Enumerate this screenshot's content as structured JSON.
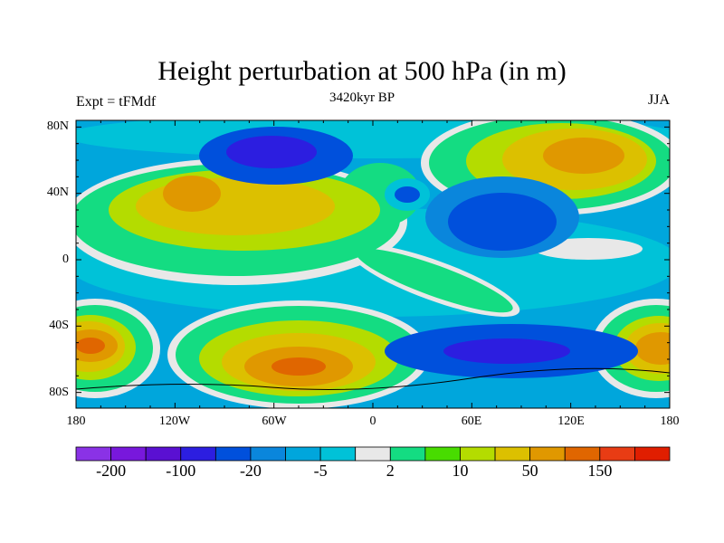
{
  "title": "Height perturbation at 500 hPa (in m)",
  "left_string": "Expt = tFMdf",
  "center_string": "3420kyr BP",
  "right_string": "JJA",
  "chart_data": {
    "type": "heatmap",
    "title": "Height perturbation at 500 hPa (in m)",
    "variable": "500 hPa geopotential height perturbation",
    "units": "m",
    "lat_ticks": [
      "80N",
      "40N",
      "0",
      "40S",
      "80S"
    ],
    "lon_ticks": [
      "180",
      "120W",
      "60W",
      "0",
      "60E",
      "120E",
      "180"
    ],
    "colorbar": {
      "labels": [
        "-200",
        "-100",
        "-20",
        "-5",
        "2",
        "10",
        "50",
        "150"
      ],
      "colors": [
        "#8a32e6",
        "#7818dc",
        "#5a10d2",
        "#2c1ee0",
        "#0050dc",
        "#0a86dc",
        "#00a6dc",
        "#00c2d8",
        "#e8e8e8",
        "#14dc82",
        "#48dc00",
        "#b4dc00",
        "#dcc000",
        "#e09800",
        "#e06600",
        "#e83c14",
        "#e01e00"
      ]
    }
  }
}
